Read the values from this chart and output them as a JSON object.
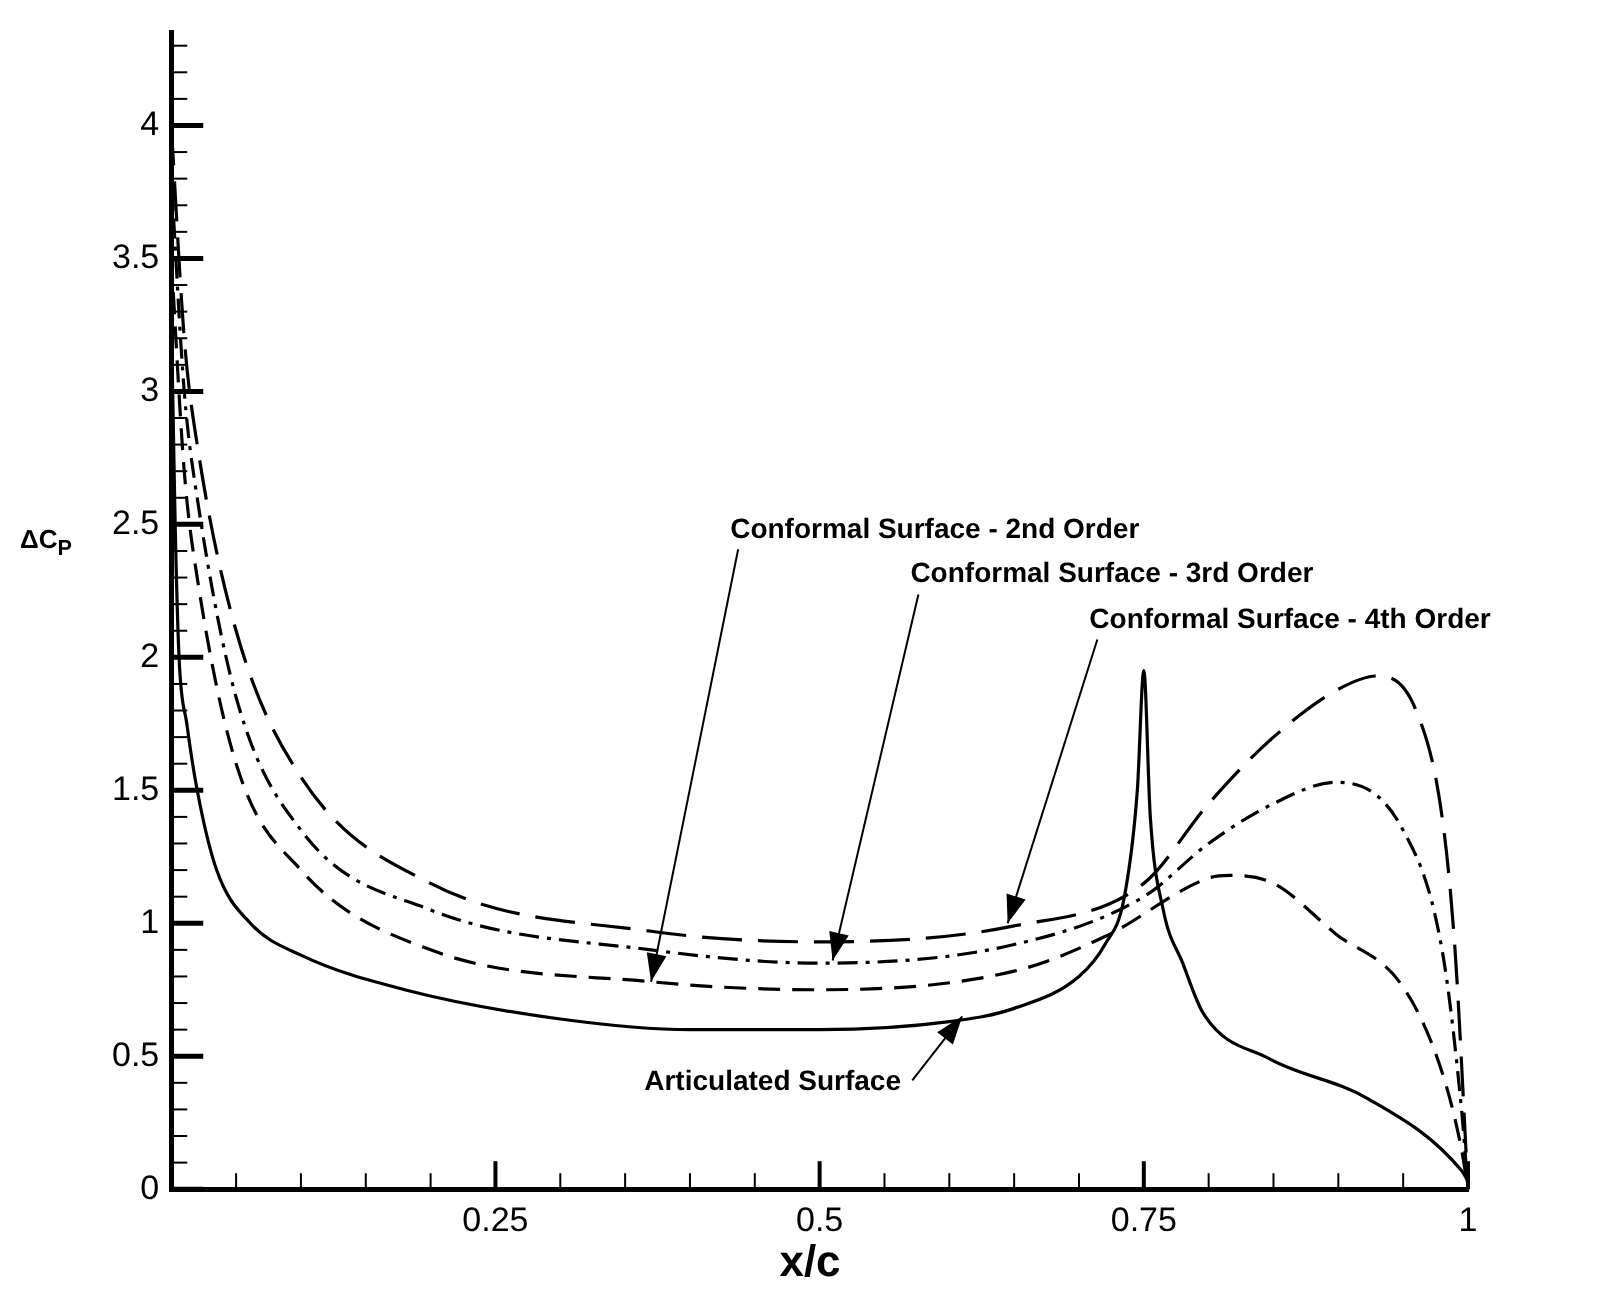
{
  "chart_data": {
    "type": "line",
    "xlabel": "x/c",
    "ylabel": "ΔC$_{P}$",
    "xlim": [
      0,
      1
    ],
    "ylim": [
      0,
      4.35
    ],
    "xticks": [
      {
        "value": 0,
        "label": null
      },
      {
        "value": 0.05,
        "label": null
      },
      {
        "value": 0.1,
        "label": null
      },
      {
        "value": 0.15,
        "label": null
      },
      {
        "value": 0.2,
        "label": null
      },
      0.25,
      {
        "value": 0.3,
        "label": null
      },
      {
        "value": 0.35,
        "label": null
      },
      {
        "value": 0.4,
        "label": null
      },
      {
        "value": 0.45,
        "label": null
      },
      0.5,
      {
        "value": 0.55,
        "label": null
      },
      {
        "value": 0.6,
        "label": null
      },
      {
        "value": 0.65,
        "label": null
      },
      {
        "value": 0.7,
        "label": null
      },
      0.75,
      {
        "value": 0.8,
        "label": null
      },
      {
        "value": 0.85,
        "label": null
      },
      {
        "value": 0.9,
        "label": null
      },
      {
        "value": 0.95,
        "label": null
      },
      1
    ],
    "yticks": [
      0,
      {
        "value": 0.1,
        "label": null
      },
      {
        "value": 0.2,
        "label": null
      },
      {
        "value": 0.3,
        "label": null
      },
      {
        "value": 0.4,
        "label": null
      },
      0.5,
      {
        "value": 0.6,
        "label": null
      },
      {
        "value": 0.7,
        "label": null
      },
      {
        "value": 0.8,
        "label": null
      },
      {
        "value": 0.9,
        "label": null
      },
      1,
      {
        "value": 1.1,
        "label": null
      },
      {
        "value": 1.2,
        "label": null
      },
      {
        "value": 1.3,
        "label": null
      },
      {
        "value": 1.4,
        "label": null
      },
      1.5,
      {
        "value": 1.6,
        "label": null
      },
      {
        "value": 1.7,
        "label": null
      },
      {
        "value": 1.8,
        "label": null
      },
      {
        "value": 1.9,
        "label": null
      },
      2,
      {
        "value": 2.1,
        "label": null
      },
      {
        "value": 2.2,
        "label": null
      },
      {
        "value": 2.3,
        "label": null
      },
      {
        "value": 2.4,
        "label": null
      },
      2.5,
      {
        "value": 2.6,
        "label": null
      },
      {
        "value": 2.7,
        "label": null
      },
      {
        "value": 2.8,
        "label": null
      },
      {
        "value": 2.9,
        "label": null
      },
      3,
      {
        "value": 3.1,
        "label": null
      },
      {
        "value": 3.2,
        "label": null
      },
      {
        "value": 3.3,
        "label": null
      },
      {
        "value": 3.4,
        "label": null
      },
      3.5,
      {
        "value": 3.6,
        "label": null
      },
      {
        "value": 3.7,
        "label": null
      },
      {
        "value": 3.8,
        "label": null
      },
      {
        "value": 3.9,
        "label": null
      },
      4,
      {
        "value": 4.1,
        "label": null
      },
      {
        "value": 4.2,
        "label": null
      },
      {
        "value": 4.3,
        "label": null
      }
    ],
    "grid": false,
    "legend": false,
    "marker": "none",
    "series": [
      {
        "color": "#000000",
        "line_style": "solid",
        "x": [
          0,
          0.003,
          0.006,
          0.012,
          0.02,
          0.035,
          0.061,
          0.1,
          0.18,
          0.3,
          0.4,
          0.5,
          0.6,
          0.65,
          0.7,
          0.72,
          0.735,
          0.745,
          0.75,
          0.755,
          0.765,
          0.78,
          0.796,
          0.847,
          0.923,
          0.995,
          1
        ],
        "values": [
          3.3,
          2.5,
          2.0,
          1.75,
          1.5,
          1.2,
          1.0,
          0.88,
          0.75,
          0.64,
          0.6,
          0.6,
          0.63,
          0.68,
          0.8,
          0.92,
          1.1,
          1.5,
          1.95,
          1.4,
          1.05,
          0.85,
          0.66,
          0.49,
          0.34,
          0.07,
          0.03
        ]
      },
      {
        "color": "#000000",
        "line_style": "dashed",
        "x": [
          0,
          0.01,
          0.02,
          0.05,
          0.1,
          0.2,
          0.37,
          0.5,
          0.65,
          0.72,
          0.8,
          0.816,
          0.85,
          0.898,
          0.95,
          0.98,
          0.995,
          1
        ],
        "values": [
          3.5,
          2.7,
          2.3,
          1.6,
          1.2,
          0.9,
          0.78,
          0.75,
          0.82,
          0.95,
          1.17,
          1.18,
          1.15,
          0.96,
          0.76,
          0.44,
          0.15,
          0
        ]
      },
      {
        "color": "#000000",
        "line_style": "dashdot",
        "x": [
          0,
          0.01,
          0.02,
          0.05,
          0.1,
          0.2,
          0.37,
          0.5,
          0.65,
          0.75,
          0.8,
          0.85,
          0.898,
          0.95,
          0.98,
          0.995,
          1
        ],
        "values": [
          3.8,
          3.0,
          2.6,
          1.85,
          1.35,
          1.05,
          0.9,
          0.85,
          0.92,
          1.1,
          1.3,
          1.45,
          1.53,
          1.35,
          0.9,
          0.3,
          0
        ]
      },
      {
        "color": "#000000",
        "line_style": "longdash",
        "x": [
          0,
          0.01,
          0.02,
          0.05,
          0.1,
          0.2,
          0.37,
          0.5,
          0.65,
          0.75,
          0.8,
          0.85,
          0.9,
          0.93,
          0.96,
          0.98,
          0.99,
          1
        ],
        "values": [
          4.0,
          3.2,
          2.8,
          2.1,
          1.55,
          1.15,
          0.97,
          0.93,
          0.99,
          1.15,
          1.45,
          1.7,
          1.88,
          1.93,
          1.8,
          1.4,
          0.9,
          0
        ]
      }
    ],
    "annotations": [
      {
        "text": "Conformal Surface - 2nd Order",
        "x": 0.37,
        "y": 0.78
      },
      {
        "text": "Conformal Surface - 3rd Order",
        "x": 0.51,
        "y": 0.86
      },
      {
        "text": "Conformal Surface - 4th Order",
        "x": 0.645,
        "y": 1.0
      },
      {
        "text": "Articulated Surface",
        "x": 0.61,
        "y": 0.65
      }
    ]
  }
}
